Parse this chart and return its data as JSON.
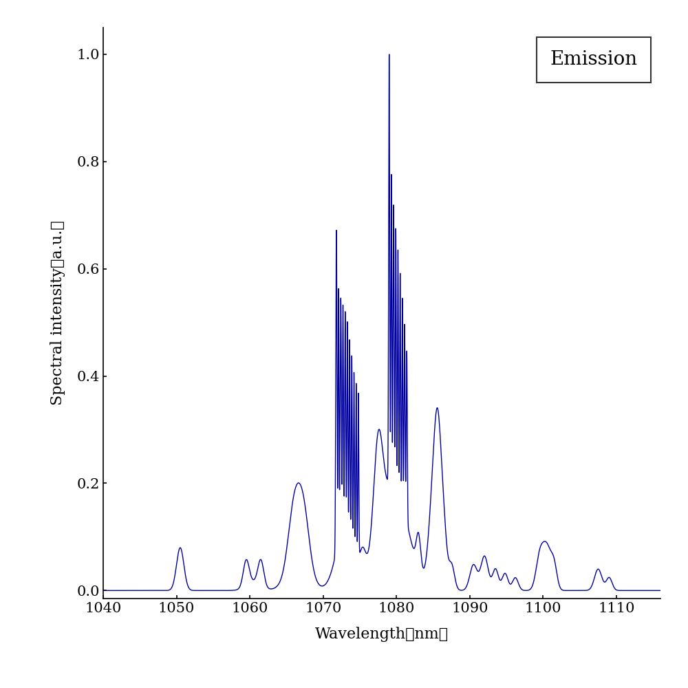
{
  "legend_text": "Emission",
  "line_color": "#0000a0",
  "xlim": [
    1040,
    1116
  ],
  "ylim": [
    -0.015,
    1.05
  ],
  "xticks": [
    1040,
    1050,
    1060,
    1070,
    1080,
    1090,
    1100,
    1110
  ],
  "yticks": [
    0,
    0.2,
    0.4,
    0.6,
    0.8,
    1
  ],
  "xlabel": "Wavelength（nm）",
  "ylabel": "Spectral intensity（a.u.）",
  "background_color": "#ffffff",
  "figsize": [
    10,
    10
  ],
  "dpi": 100
}
